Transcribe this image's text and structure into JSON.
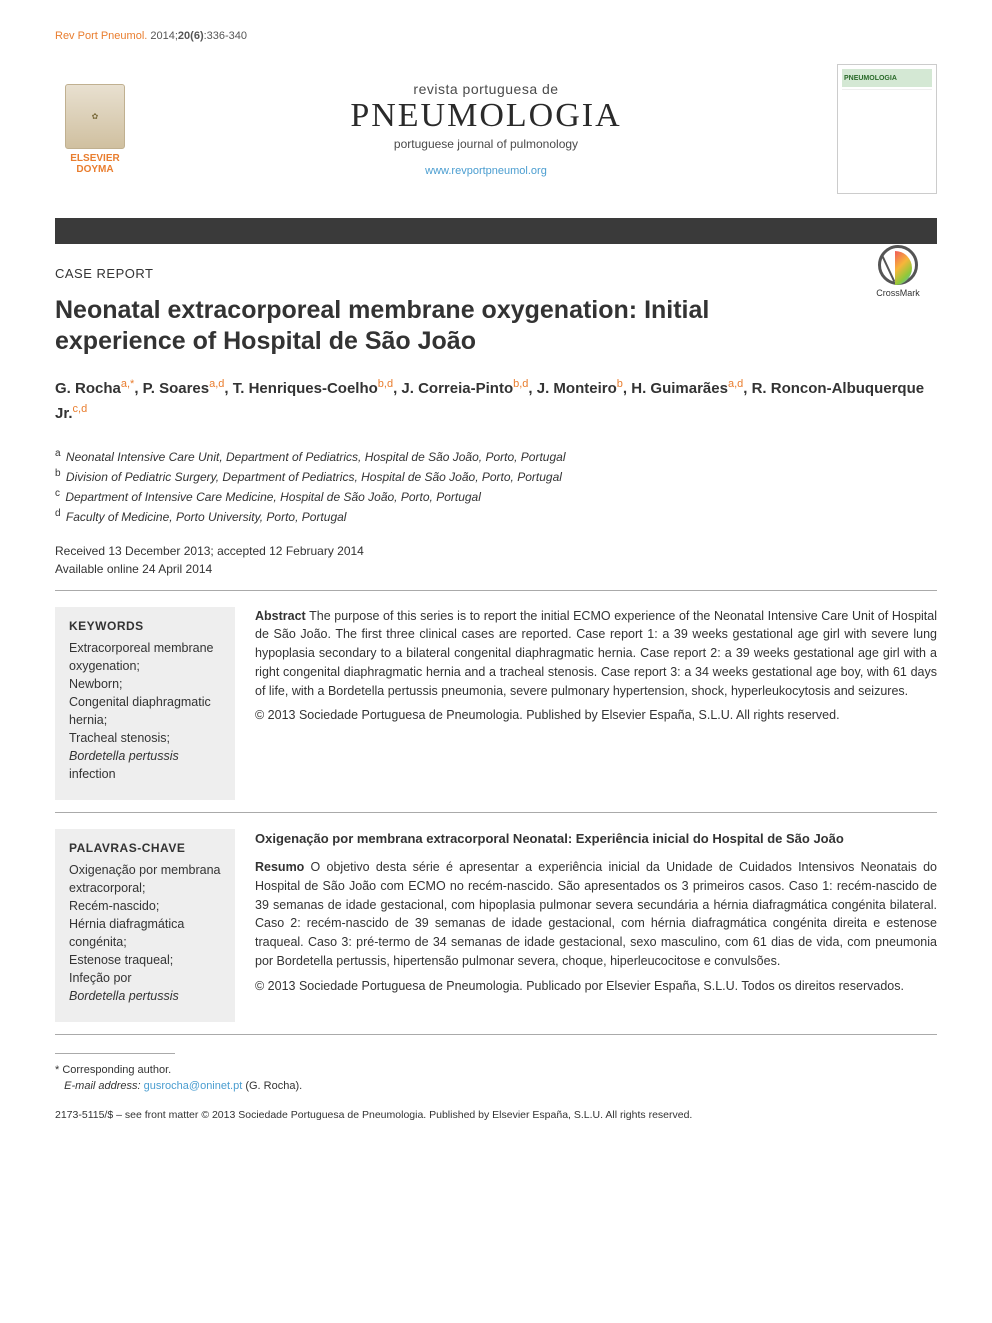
{
  "header": {
    "citation_prefix": "Rev Port Pneumol.",
    "citation_body": " 2014;",
    "volume": "20(6)",
    "pages": ":336-340"
  },
  "publisher": {
    "logo_top": "ELSEVIER",
    "logo_bottom": "DOYMA"
  },
  "journal": {
    "super": "revista portuguesa de",
    "main": "PNEUMOLOGIA",
    "sub": "portuguese journal of pulmonology",
    "url": "www.revportpneumol.org",
    "cover_label": "PNEUMOLOGIA"
  },
  "article": {
    "type": "CASE REPORT",
    "title": "Neonatal extracorporeal membrane oxygenation: Initial experience of Hospital de São João",
    "crossmark": "CrossMark"
  },
  "authors": [
    {
      "name": "G. Rocha",
      "aff": "a,*"
    },
    {
      "name": "P. Soares",
      "aff": "a,d"
    },
    {
      "name": "T. Henriques-Coelho",
      "aff": "b,d"
    },
    {
      "name": "J. Correia-Pinto",
      "aff": "b,d"
    },
    {
      "name": "J. Monteiro",
      "aff": "b"
    },
    {
      "name": "H. Guimarães",
      "aff": "a,d"
    },
    {
      "name": "R. Roncon-Albuquerque Jr.",
      "aff": "c,d"
    }
  ],
  "affiliations": [
    {
      "letter": "a",
      "text": "Neonatal Intensive Care Unit, Department of Pediatrics, Hospital de São João, Porto, Portugal"
    },
    {
      "letter": "b",
      "text": "Division of Pediatric Surgery, Department of Pediatrics, Hospital de São João, Porto, Portugal"
    },
    {
      "letter": "c",
      "text": "Department of Intensive Care Medicine, Hospital de São João, Porto, Portugal"
    },
    {
      "letter": "d",
      "text": "Faculty of Medicine, Porto University, Porto, Portugal"
    }
  ],
  "dates": {
    "received_accepted": "Received 13 December 2013; accepted 12 February 2014",
    "online": "Available online 24 April 2014"
  },
  "keywords_en": {
    "heading": "KEYWORDS",
    "items": [
      "Extracorporeal membrane oxygenation;",
      "Newborn;",
      "Congenital diaphragmatic hernia;",
      "Tracheal stenosis;"
    ],
    "last_italic_lead": "Bordetella pertussis",
    "last_tail": " infection"
  },
  "abstract_en": {
    "label": "Abstract",
    "body": "   The purpose of this series is to report the initial ECMO experience of the Neonatal Intensive Care Unit of Hospital de São João. The first three clinical cases are reported. Case report 1: a 39 weeks gestational age girl with severe lung hypoplasia secondary to a bilateral congenital diaphragmatic hernia. Case report 2: a 39 weeks gestational age girl with a right congenital diaphragmatic hernia and a tracheal stenosis. Case report 3: a 34 weeks gestational age boy, with 61 days of life, with a Bordetella pertussis pneumonia, severe pulmonary hypertension, shock, hyperleukocytosis and seizures.",
    "copyright": "© 2013 Sociedade Portuguesa de Pneumologia. Published by Elsevier España, S.L.U. All rights reserved."
  },
  "keywords_pt": {
    "heading": "PALAVRAS-CHAVE",
    "items": [
      "Oxigenação por membrana extracorporal;",
      "Recém-nascido;",
      "Hérnia diafragmática congénita;",
      "Estenose traqueal;",
      "Infeção por"
    ],
    "last_italic": "Bordetella pertussis"
  },
  "abstract_pt": {
    "title": "Oxigenação por membrana extracorporal Neonatal: Experiência inicial do Hospital de São João",
    "label": "Resumo",
    "body": "   O objetivo desta série é apresentar a experiência inicial da Unidade de Cuidados Intensivos Neonatais do Hospital de São João com ECMO no recém-nascido. São apresentados os 3 primeiros casos. Caso 1: recém-nascido de 39 semanas de idade gestacional, com hipoplasia pulmonar severa secundária a hérnia diafragmática congénita bilateral. Caso 2: recém-nascido de 39 semanas de idade gestacional, com hérnia diafragmática congénita direita e estenose traqueal. Caso 3: pré-termo de 34 semanas de idade gestacional, sexo masculino, com 61 dias de vida, com pneumonia por Bordetella pertussis, hipertensão pulmonar severa, choque, hiperleucocitose e convulsões.",
    "copyright": "© 2013 Sociedade Portuguesa de Pneumologia. Publicado por Elsevier España, S.L.U. Todos os direitos reservados."
  },
  "footnotes": {
    "corr_symbol": "*",
    "corr_text": " Corresponding author.",
    "email_label": "E-mail address: ",
    "email": "gusrocha@oninet.pt",
    "email_tail": " (G. Rocha)."
  },
  "front_matter": "2173-5115/$ – see front matter © 2013 Sociedade Portuguesa de Pneumologia. Published by Elsevier España, S.L.U. All rights reserved.",
  "colors": {
    "accent": "#e97d2e",
    "link": "#4a9dd0",
    "darkbar": "#3a3a3a",
    "keywords_bg": "#eeeeee"
  }
}
